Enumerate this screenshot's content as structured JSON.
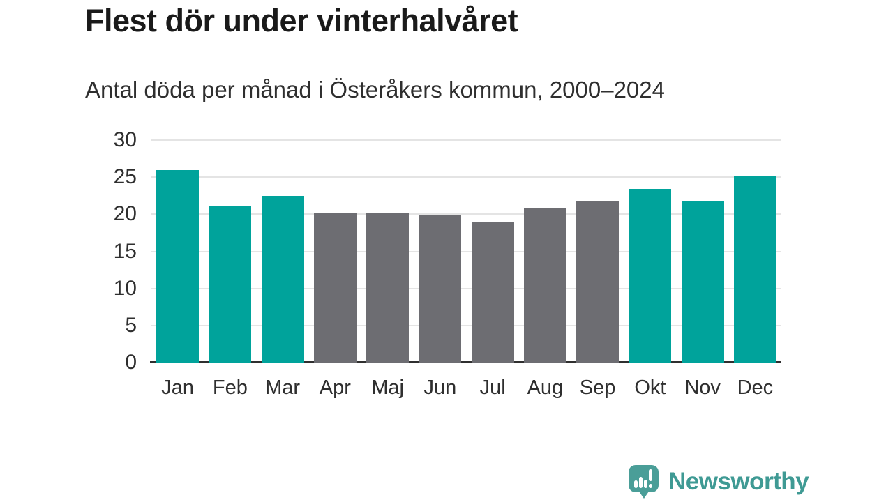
{
  "title": "Flest dör under vinterhalvåret",
  "subtitle": "Antal döda per månad i Österåkers kommun, 2000–2024",
  "chart_data": {
    "type": "bar",
    "title": "Flest dör under vinterhalvåret",
    "subtitle": "Antal döda per månad i Österåkers kommun, 2000–2024",
    "categories": [
      "Jan",
      "Feb",
      "Mar",
      "Apr",
      "Maj",
      "Jun",
      "Jul",
      "Aug",
      "Sep",
      "Okt",
      "Nov",
      "Dec"
    ],
    "values": [
      26.0,
      21.1,
      22.5,
      20.2,
      20.1,
      19.8,
      18.9,
      20.9,
      21.8,
      23.4,
      21.8,
      25.1
    ],
    "season_key": [
      "winter",
      "winter",
      "winter",
      "summer",
      "summer",
      "summer",
      "summer",
      "summer",
      "summer",
      "winter",
      "winter",
      "winter"
    ],
    "palette": {
      "winter": "#00a39b",
      "summer": "#6d6d72"
    },
    "xlabel": "",
    "ylabel": "",
    "ylim": [
      0,
      30
    ],
    "yticks": [
      0,
      5,
      10,
      15,
      20,
      25,
      30
    ],
    "grid": true,
    "legend": false
  },
  "branding": {
    "logo_text": "Newsworthy",
    "logo_color": "#3f9a94",
    "logo_icon": "speech-bubble-bar-chart-exclamation"
  },
  "colors": {
    "background": "#ffffff",
    "title_text": "#1a1a1a",
    "subtitle_text": "#2f2f2f",
    "axis_text": "#2f2f2f",
    "gridline": "#e4e4e4",
    "baseline": "#2f2f2f"
  }
}
